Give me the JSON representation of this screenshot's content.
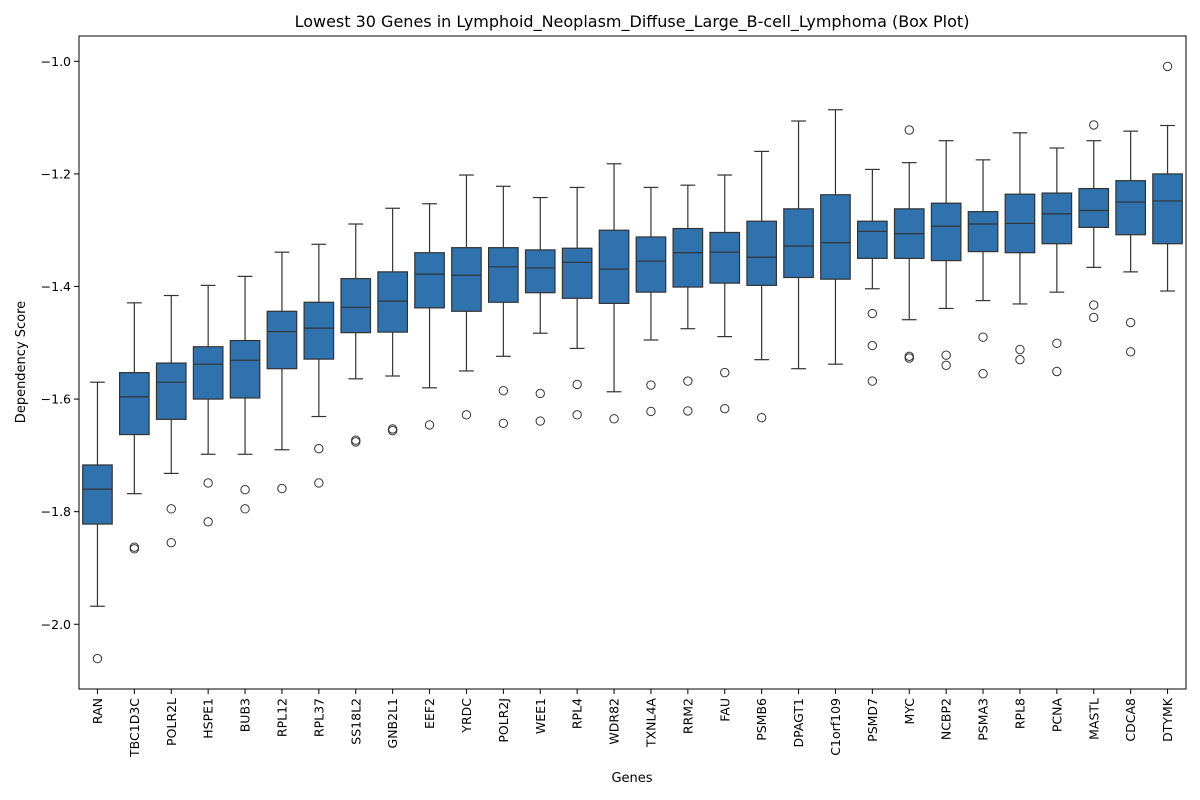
{
  "chart_data": {
    "type": "box",
    "title": "Lowest 30 Genes in Lymphoid_Neoplasm_Diffuse_Large_B-cell_Lymphoma (Box Plot)",
    "xlabel": "Genes",
    "ylabel": "Dependency Score",
    "ylim": [
      -2.115,
      -0.955
    ],
    "yticks": [
      -2.0,
      -1.8,
      -1.6,
      -1.4,
      -1.2,
      -1.0
    ],
    "ytick_labels": [
      "−2.0",
      "−1.8",
      "−1.6",
      "−1.4",
      "−1.2",
      "−1.0"
    ],
    "box_color": "#2f72ad",
    "line_color": "#333333",
    "boxes": [
      {
        "gene": "RAN",
        "whisker_low": -1.968,
        "q1": -1.822,
        "median": -1.76,
        "q3": -1.717,
        "whisker_high": -1.57,
        "outliers": [
          -2.061
        ]
      },
      {
        "gene": "TBC1D3C",
        "whisker_low": -1.768,
        "q1": -1.663,
        "median": -1.596,
        "q3": -1.553,
        "whisker_high": -1.429,
        "outliers": [
          -1.863,
          -1.866
        ]
      },
      {
        "gene": "POLR2L",
        "whisker_low": -1.732,
        "q1": -1.636,
        "median": -1.57,
        "q3": -1.536,
        "whisker_high": -1.416,
        "outliers": [
          -1.795,
          -1.855
        ]
      },
      {
        "gene": "HSPE1",
        "whisker_low": -1.698,
        "q1": -1.6,
        "median": -1.538,
        "q3": -1.507,
        "whisker_high": -1.398,
        "outliers": [
          -1.749,
          -1.818
        ]
      },
      {
        "gene": "BUB3",
        "whisker_low": -1.698,
        "q1": -1.598,
        "median": -1.531,
        "q3": -1.496,
        "whisker_high": -1.382,
        "outliers": [
          -1.761,
          -1.795
        ]
      },
      {
        "gene": "RPL12",
        "whisker_low": -1.69,
        "q1": -1.546,
        "median": -1.48,
        "q3": -1.444,
        "whisker_high": -1.339,
        "outliers": [
          -1.759
        ]
      },
      {
        "gene": "RPL37",
        "whisker_low": -1.631,
        "q1": -1.529,
        "median": -1.474,
        "q3": -1.428,
        "whisker_high": -1.325,
        "outliers": [
          -1.688,
          -1.749
        ]
      },
      {
        "gene": "SS18L2",
        "whisker_low": -1.564,
        "q1": -1.482,
        "median": -1.437,
        "q3": -1.386,
        "whisker_high": -1.289,
        "outliers": [
          -1.673,
          -1.676
        ]
      },
      {
        "gene": "GNB2L1",
        "whisker_low": -1.559,
        "q1": -1.481,
        "median": -1.426,
        "q3": -1.374,
        "whisker_high": -1.261,
        "outliers": [
          -1.653,
          -1.656
        ]
      },
      {
        "gene": "EEF2",
        "whisker_low": -1.58,
        "q1": -1.438,
        "median": -1.378,
        "q3": -1.34,
        "whisker_high": -1.253,
        "outliers": [
          -1.646
        ]
      },
      {
        "gene": "YRDC",
        "whisker_low": -1.55,
        "q1": -1.444,
        "median": -1.38,
        "q3": -1.331,
        "whisker_high": -1.202,
        "outliers": [
          -1.628
        ]
      },
      {
        "gene": "POLR2J",
        "whisker_low": -1.524,
        "q1": -1.428,
        "median": -1.365,
        "q3": -1.331,
        "whisker_high": -1.222,
        "outliers": [
          -1.585,
          -1.643
        ]
      },
      {
        "gene": "WEE1",
        "whisker_low": -1.483,
        "q1": -1.411,
        "median": -1.367,
        "q3": -1.335,
        "whisker_high": -1.242,
        "outliers": [
          -1.59,
          -1.639
        ]
      },
      {
        "gene": "RPL4",
        "whisker_low": -1.51,
        "q1": -1.421,
        "median": -1.357,
        "q3": -1.332,
        "whisker_high": -1.224,
        "outliers": [
          -1.574,
          -1.628
        ]
      },
      {
        "gene": "WDR82",
        "whisker_low": -1.587,
        "q1": -1.43,
        "median": -1.369,
        "q3": -1.3,
        "whisker_high": -1.182,
        "outliers": [
          -1.635
        ]
      },
      {
        "gene": "TXNL4A",
        "whisker_low": -1.495,
        "q1": -1.41,
        "median": -1.355,
        "q3": -1.312,
        "whisker_high": -1.224,
        "outliers": [
          -1.575,
          -1.622
        ]
      },
      {
        "gene": "RRM2",
        "whisker_low": -1.475,
        "q1": -1.401,
        "median": -1.34,
        "q3": -1.297,
        "whisker_high": -1.22,
        "outliers": [
          -1.568,
          -1.621
        ]
      },
      {
        "gene": "FAU",
        "whisker_low": -1.489,
        "q1": -1.394,
        "median": -1.339,
        "q3": -1.304,
        "whisker_high": -1.202,
        "outliers": [
          -1.553,
          -1.617
        ]
      },
      {
        "gene": "PSMB6",
        "whisker_low": -1.53,
        "q1": -1.398,
        "median": -1.348,
        "q3": -1.284,
        "whisker_high": -1.16,
        "outliers": [
          -1.633
        ]
      },
      {
        "gene": "DPAGT1",
        "whisker_low": -1.546,
        "q1": -1.384,
        "median": -1.328,
        "q3": -1.262,
        "whisker_high": -1.106,
        "outliers": []
      },
      {
        "gene": "C1orf109",
        "whisker_low": -1.538,
        "q1": -1.387,
        "median": -1.322,
        "q3": -1.237,
        "whisker_high": -1.086,
        "outliers": []
      },
      {
        "gene": "PSMD7",
        "whisker_low": -1.404,
        "q1": -1.35,
        "median": -1.302,
        "q3": -1.284,
        "whisker_high": -1.192,
        "outliers": [
          -1.448,
          -1.505,
          -1.568
        ]
      },
      {
        "gene": "MYC",
        "whisker_low": -1.459,
        "q1": -1.35,
        "median": -1.306,
        "q3": -1.262,
        "whisker_high": -1.18,
        "outliers": [
          -1.122,
          -1.524,
          -1.527
        ]
      },
      {
        "gene": "NCBP2",
        "whisker_low": -1.439,
        "q1": -1.354,
        "median": -1.293,
        "q3": -1.252,
        "whisker_high": -1.141,
        "outliers": [
          -1.522,
          -1.54
        ]
      },
      {
        "gene": "PSMA3",
        "whisker_low": -1.425,
        "q1": -1.338,
        "median": -1.289,
        "q3": -1.267,
        "whisker_high": -1.175,
        "outliers": [
          -1.49,
          -1.555
        ]
      },
      {
        "gene": "RPL8",
        "whisker_low": -1.431,
        "q1": -1.34,
        "median": -1.288,
        "q3": -1.236,
        "whisker_high": -1.127,
        "outliers": [
          -1.512,
          -1.53
        ]
      },
      {
        "gene": "PCNA",
        "whisker_low": -1.41,
        "q1": -1.324,
        "median": -1.271,
        "q3": -1.234,
        "whisker_high": -1.154,
        "outliers": [
          -1.501,
          -1.551
        ]
      },
      {
        "gene": "MASTL",
        "whisker_low": -1.366,
        "q1": -1.295,
        "median": -1.265,
        "q3": -1.226,
        "whisker_high": -1.141,
        "outliers": [
          -1.113,
          -1.433,
          -1.455
        ]
      },
      {
        "gene": "CDCA8",
        "whisker_low": -1.374,
        "q1": -1.308,
        "median": -1.25,
        "q3": -1.212,
        "whisker_high": -1.124,
        "outliers": [
          -1.464,
          -1.516
        ]
      },
      {
        "gene": "DTYMK",
        "whisker_low": -1.408,
        "q1": -1.324,
        "median": -1.248,
        "q3": -1.2,
        "whisker_high": -1.114,
        "outliers": [
          -1.009
        ]
      }
    ]
  }
}
